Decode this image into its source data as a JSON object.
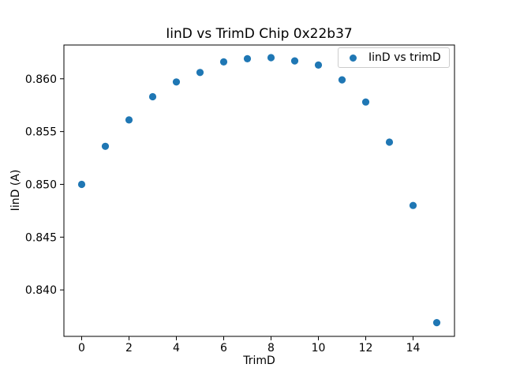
{
  "chart_data": {
    "type": "scatter",
    "title": "IinD vs TrimD Chip 0x22b37",
    "xlabel": "TrimD",
    "ylabel": "IinD (A)",
    "legend": {
      "label": "IinD vs trimD",
      "position": "upper right"
    },
    "marker_color": "#1f77b4",
    "x": [
      0,
      1,
      2,
      3,
      4,
      5,
      6,
      7,
      8,
      9,
      10,
      11,
      12,
      13,
      14,
      15
    ],
    "y": [
      0.85,
      0.8536,
      0.8561,
      0.8583,
      0.8597,
      0.8606,
      0.8616,
      0.8619,
      0.862,
      0.8617,
      0.8613,
      0.8599,
      0.8578,
      0.854,
      0.848,
      0.8369
    ],
    "xlim": [
      -0.75,
      15.75
    ],
    "ylim": [
      0.8356,
      0.8632
    ],
    "xticks": [
      0,
      2,
      4,
      6,
      8,
      10,
      12,
      14
    ],
    "xtick_labels": [
      "0",
      "2",
      "4",
      "6",
      "8",
      "10",
      "12",
      "14"
    ],
    "yticks": [
      0.84,
      0.845,
      0.85,
      0.855,
      0.86
    ],
    "ytick_labels": [
      "0.840",
      "0.845",
      "0.850",
      "0.855",
      "0.860"
    ],
    "grid": false,
    "spine_color": "#000000",
    "text_color": "#000000"
  }
}
